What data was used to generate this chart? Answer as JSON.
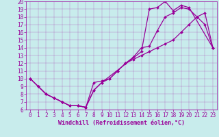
{
  "xlabel": "Windchill (Refroidissement éolien,°C)",
  "background_color": "#c8ecec",
  "line_color": "#990099",
  "xlim": [
    -0.5,
    23.5
  ],
  "ylim": [
    6,
    20
  ],
  "xticks": [
    0,
    1,
    2,
    3,
    4,
    5,
    6,
    7,
    8,
    9,
    10,
    11,
    12,
    13,
    14,
    15,
    16,
    17,
    18,
    19,
    20,
    21,
    22,
    23
  ],
  "yticks": [
    6,
    7,
    8,
    9,
    10,
    11,
    12,
    13,
    14,
    15,
    16,
    17,
    18,
    19,
    20
  ],
  "line1_x": [
    0,
    1,
    2,
    3,
    4,
    5,
    6,
    7,
    8,
    9,
    10,
    11,
    12,
    13,
    14,
    15,
    16,
    17,
    18,
    19,
    20,
    21,
    22,
    23
  ],
  "line1_y": [
    10,
    9,
    8,
    7.5,
    7,
    6.5,
    6.5,
    6.3,
    9.5,
    9.7,
    10,
    11,
    12,
    12.5,
    13,
    13.5,
    14,
    14.5,
    15,
    16,
    17,
    18,
    18.5,
    14
  ],
  "line2_x": [
    0,
    1,
    2,
    3,
    4,
    5,
    6,
    7,
    8,
    9,
    10,
    11,
    12,
    13,
    14,
    15,
    16,
    17,
    18,
    19,
    20,
    21,
    22,
    23
  ],
  "line2_y": [
    10,
    9,
    8,
    7.5,
    7,
    6.5,
    6.5,
    6.3,
    8.5,
    9.5,
    10,
    11,
    12,
    12.8,
    14,
    14.2,
    16.2,
    18,
    18.5,
    19.2,
    19,
    18,
    17,
    14
  ],
  "line3_x": [
    0,
    1,
    2,
    3,
    4,
    5,
    6,
    7,
    8,
    9,
    14,
    15,
    16,
    17,
    18,
    19,
    20,
    23
  ],
  "line3_y": [
    10,
    9,
    8,
    7.5,
    7,
    6.5,
    6.5,
    6.3,
    8.5,
    9.5,
    13.5,
    19,
    19.2,
    20,
    18.8,
    19.5,
    19.2,
    14
  ],
  "xlabel_fontsize": 6,
  "tick_fontsize": 5.5,
  "linewidth": 0.9,
  "markersize": 2.0
}
